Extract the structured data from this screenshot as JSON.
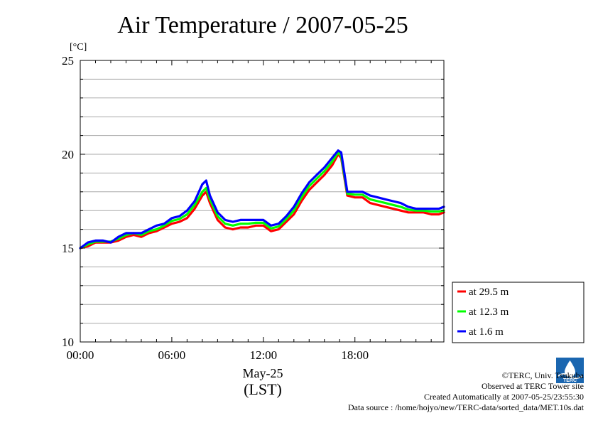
{
  "chart_data": {
    "type": "line",
    "title": "Air Temperature / 2007-05-25",
    "ylabel": "[°C]",
    "xlabel": "May-25",
    "xlabel_sub": "(LST)",
    "x_unit": "hours (LST)",
    "xlim": [
      0,
      23.83
    ],
    "ylim": [
      10,
      25
    ],
    "x_ticks": [
      0,
      6,
      12,
      18
    ],
    "x_tick_labels": [
      "00:00",
      "06:00",
      "12:00",
      "18:00"
    ],
    "y_ticks": [
      10,
      15,
      20,
      25
    ],
    "y_tick_labels": [
      "10",
      "15",
      "20",
      "25"
    ],
    "y_minor_step": 1,
    "grid": true,
    "legend_position": "outside-right-bottom",
    "x": [
      0,
      0.5,
      1,
      1.5,
      2,
      2.5,
      3,
      3.5,
      4,
      4.5,
      5,
      5.5,
      6,
      6.5,
      7,
      7.5,
      8,
      8.25,
      8.5,
      9,
      9.5,
      10,
      10.5,
      11,
      11.5,
      12,
      12.5,
      13,
      13.5,
      14,
      14.5,
      15,
      15.5,
      16,
      16.5,
      16.9,
      17.1,
      17.5,
      18,
      18.5,
      19,
      19.5,
      20,
      20.5,
      21,
      21.5,
      22,
      22.5,
      23,
      23.5,
      23.83
    ],
    "series": [
      {
        "name": "at 29.5 m",
        "color": "#ff0000",
        "values": [
          15.0,
          15.1,
          15.3,
          15.3,
          15.3,
          15.4,
          15.6,
          15.7,
          15.6,
          15.8,
          15.9,
          16.1,
          16.3,
          16.4,
          16.6,
          17.1,
          17.8,
          18.0,
          17.4,
          16.5,
          16.1,
          16.0,
          16.1,
          16.1,
          16.2,
          16.2,
          15.9,
          16.0,
          16.4,
          16.8,
          17.5,
          18.1,
          18.5,
          18.9,
          19.4,
          20.0,
          19.8,
          17.8,
          17.7,
          17.7,
          17.4,
          17.3,
          17.2,
          17.1,
          17.0,
          16.9,
          16.9,
          16.9,
          16.8,
          16.8,
          16.9
        ]
      },
      {
        "name": "at 12.3 m",
        "color": "#00ff00",
        "values": [
          15.0,
          15.2,
          15.35,
          15.35,
          15.35,
          15.5,
          15.7,
          15.8,
          15.7,
          15.9,
          16.0,
          16.2,
          16.45,
          16.55,
          16.8,
          17.3,
          18.0,
          18.2,
          17.6,
          16.7,
          16.3,
          16.2,
          16.3,
          16.3,
          16.35,
          16.35,
          16.05,
          16.15,
          16.55,
          17.0,
          17.7,
          18.3,
          18.7,
          19.1,
          19.6,
          20.1,
          19.9,
          17.9,
          17.85,
          17.85,
          17.6,
          17.5,
          17.4,
          17.3,
          17.2,
          17.05,
          17.0,
          17.0,
          16.95,
          16.95,
          17.0
        ]
      },
      {
        "name": "at 1.6 m",
        "color": "#0000ff",
        "values": [
          15.0,
          15.3,
          15.4,
          15.4,
          15.3,
          15.6,
          15.8,
          15.8,
          15.8,
          16.0,
          16.2,
          16.3,
          16.6,
          16.7,
          17.0,
          17.5,
          18.4,
          18.6,
          17.8,
          16.9,
          16.5,
          16.4,
          16.5,
          16.5,
          16.5,
          16.5,
          16.2,
          16.3,
          16.7,
          17.2,
          17.9,
          18.5,
          18.9,
          19.3,
          19.8,
          20.2,
          20.1,
          18.0,
          18.0,
          18.0,
          17.8,
          17.7,
          17.6,
          17.5,
          17.4,
          17.2,
          17.1,
          17.1,
          17.1,
          17.1,
          17.2
        ]
      }
    ]
  },
  "footer": {
    "line1": "©TERC, Univ. Tsukuba",
    "line2": "Observed at TERC Tower site",
    "line3": "Created Automatically at 2007-05-25/23:55:30",
    "line4": "Data source : /home/hojyo/new/TERC-data/sorted_data/MET.10s.dat",
    "logo_text": "TERC"
  }
}
